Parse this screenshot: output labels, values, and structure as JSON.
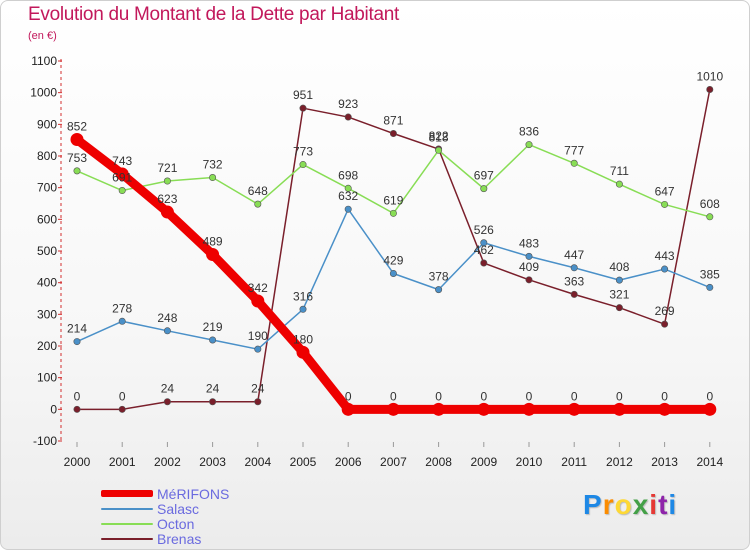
{
  "title": "Evolution du Montant de la Dette par Habitant",
  "subtitle": "(en €)",
  "logo": [
    "P",
    "r",
    "o",
    "x",
    "i",
    "t",
    "i"
  ],
  "chart_data": {
    "type": "line",
    "categories": [
      "2000",
      "2001",
      "2002",
      "2003",
      "2004",
      "2005",
      "2006",
      "2007",
      "2008",
      "2009",
      "2010",
      "2011",
      "2012",
      "2013",
      "2014"
    ],
    "ylim": [
      -100,
      1100
    ],
    "yticks": [
      "-100",
      "0",
      "100",
      "200",
      "300",
      "400",
      "500",
      "600",
      "700",
      "800",
      "900",
      "1000",
      "1100"
    ],
    "grid": false,
    "legend_position": "bottom-left",
    "series": [
      {
        "name": "MéRIFONS",
        "color": "#ee0000",
        "values": [
          852,
          743,
          623,
          489,
          342,
          180,
          0,
          0,
          0,
          0,
          0,
          0,
          0,
          0,
          0
        ],
        "labels": [
          "852",
          "743",
          "623",
          "489",
          "342",
          "180",
          "0",
          "0",
          "0",
          "0",
          "0",
          "0",
          "0",
          "0",
          "0"
        ]
      },
      {
        "name": "Salasc",
        "color": "#4a90c8",
        "values": [
          214,
          278,
          248,
          219,
          190,
          316,
          632,
          429,
          378,
          526,
          483,
          447,
          408,
          443,
          385
        ],
        "labels": [
          "214",
          "278",
          "248",
          "219",
          "190",
          "316",
          "632",
          "429",
          "378",
          "526",
          "483",
          "447",
          "408",
          "443",
          "385"
        ]
      },
      {
        "name": "Octon",
        "color": "#88dd55",
        "values": [
          753,
          691,
          721,
          732,
          648,
          773,
          698,
          619,
          818,
          697,
          836,
          777,
          711,
          647,
          608
        ],
        "labels": [
          "753",
          "691",
          "721",
          "732",
          "648",
          "773",
          "698",
          "619",
          "818",
          "697",
          "836",
          "777",
          "711",
          "647",
          "608"
        ]
      },
      {
        "name": "Brenas",
        "color": "#7a1f2b",
        "values": [
          0,
          0,
          24,
          24,
          24,
          951,
          923,
          871,
          822,
          462,
          409,
          363,
          321,
          269,
          1010
        ],
        "labels": [
          "0",
          "0",
          "24",
          "24",
          "24",
          "951",
          "923",
          "871",
          "822",
          "462",
          "409",
          "363",
          "321",
          "269",
          "1010"
        ]
      }
    ]
  }
}
